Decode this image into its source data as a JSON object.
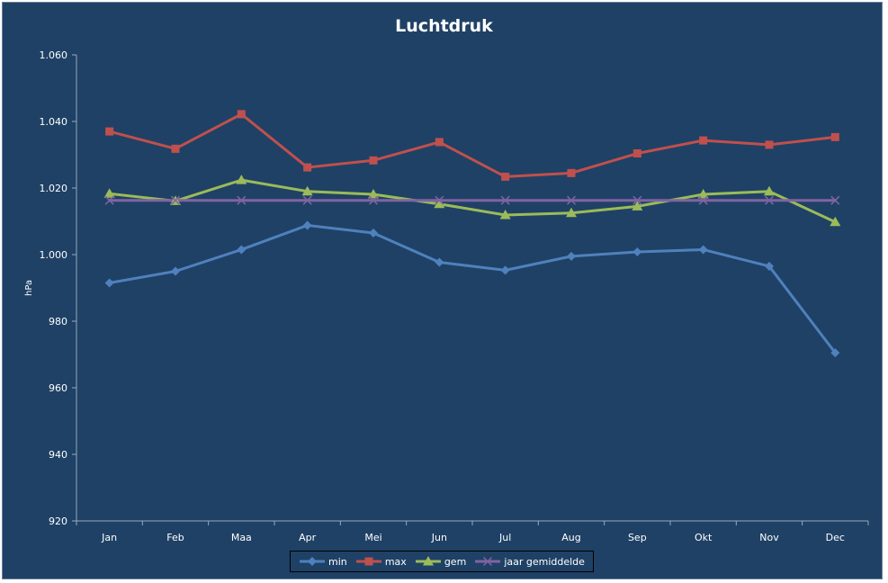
{
  "chart_data": {
    "type": "line",
    "title": "Luchtdruk",
    "xlabel": "",
    "ylabel": "hPa",
    "ylim": [
      920,
      1060
    ],
    "yticks": [
      920,
      940,
      960,
      980,
      1000,
      1020,
      1040,
      1060
    ],
    "ytick_labels": [
      "920",
      "940",
      "960",
      "980",
      "1.000",
      "1.020",
      "1.040",
      "1.060"
    ],
    "categories": [
      "Jan",
      "Feb",
      "Maa",
      "Apr",
      "Mei",
      "Jun",
      "Jul",
      "Aug",
      "Sep",
      "Okt",
      "Nov",
      "Dec"
    ],
    "grid": false,
    "legend_position": "bottom",
    "series": [
      {
        "name": "min",
        "color": "#4f81bd",
        "marker": "diamond",
        "values": [
          991.5,
          995.0,
          1001.5,
          1008.8,
          1006.5,
          997.7,
          995.3,
          999.5,
          1000.8,
          1001.5,
          996.5,
          970.5
        ]
      },
      {
        "name": "max",
        "color": "#c0504d",
        "marker": "square",
        "values": [
          1037.0,
          1031.8,
          1042.2,
          1026.2,
          1028.3,
          1033.8,
          1023.4,
          1024.5,
          1030.4,
          1034.3,
          1033.0,
          1035.3
        ]
      },
      {
        "name": "gem",
        "color": "#9bbb59",
        "marker": "triangle",
        "values": [
          1018.3,
          1016.1,
          1022.4,
          1019.0,
          1018.1,
          1015.2,
          1011.9,
          1012.5,
          1014.5,
          1018.1,
          1019.0,
          1009.8
        ]
      },
      {
        "name": "jaar gemiddelde",
        "color": "#8064a2",
        "marker": "x",
        "values": [
          1016.3,
          1016.3,
          1016.3,
          1016.3,
          1016.3,
          1016.3,
          1016.3,
          1016.3,
          1016.3,
          1016.3,
          1016.3,
          1016.3
        ]
      }
    ]
  }
}
